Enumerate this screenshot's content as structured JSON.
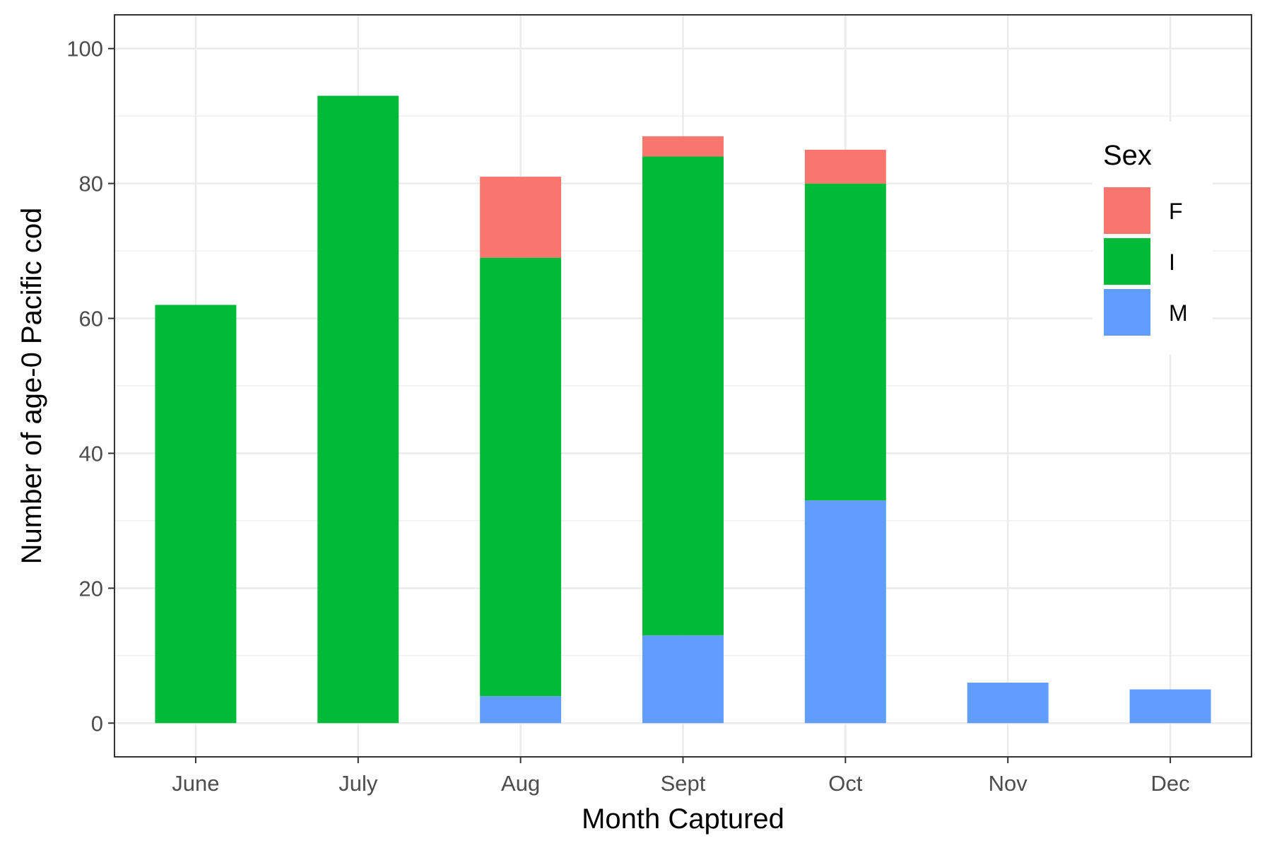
{
  "chart_data": {
    "type": "bar",
    "stacked": true,
    "categories": [
      "June",
      "July",
      "Aug",
      "Sept",
      "Oct",
      "Nov",
      "Dec"
    ],
    "series": [
      {
        "name": "M",
        "color": "#619CFF",
        "values": [
          0,
          0,
          4,
          13,
          33,
          6,
          5
        ]
      },
      {
        "name": "I",
        "color": "#00BA38",
        "values": [
          62,
          93,
          65,
          71,
          47,
          0,
          0
        ]
      },
      {
        "name": "F",
        "color": "#F8766D",
        "values": [
          0,
          0,
          12,
          3,
          5,
          0,
          0
        ]
      }
    ],
    "xlabel": "Month Captured",
    "ylabel": "Number of age-0 Pacific cod",
    "ylim": [
      -5,
      105
    ],
    "yticks": [
      "0",
      "20",
      "40",
      "60",
      "80",
      "100"
    ],
    "grid": true,
    "legend": {
      "title": "Sex",
      "position": "right-inside",
      "order": [
        "F",
        "I",
        "M"
      ]
    }
  }
}
